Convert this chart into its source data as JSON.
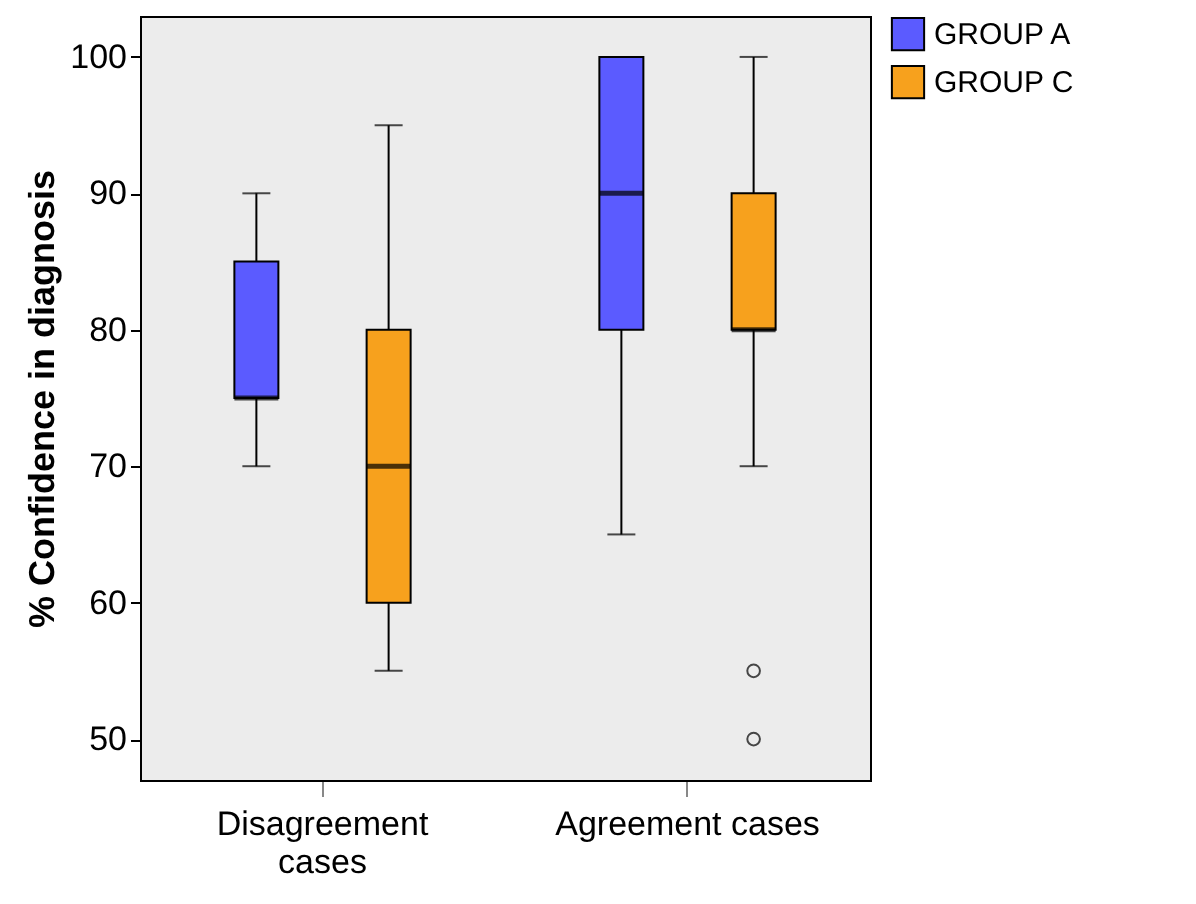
{
  "chart_data": {
    "type": "box",
    "ylabel": "% Confidence in diagnosis",
    "categories": [
      "Disagreement cases",
      "Agreement cases"
    ],
    "series": [
      {
        "name": "GROUP A",
        "color": "#5b5bff",
        "boxes": [
          {
            "low": 70,
            "q1": 75,
            "median": 75,
            "q3": 85,
            "high": 90
          },
          {
            "low": 65,
            "q1": 80,
            "median": 90,
            "q3": 100,
            "high": 100
          }
        ]
      },
      {
        "name": "GROUP C",
        "color": "#f7a11d",
        "boxes": [
          {
            "low": 55,
            "q1": 60,
            "median": 70,
            "q3": 80,
            "high": 95
          },
          {
            "low": 70,
            "q1": 80,
            "median": 80,
            "q3": 90,
            "high": 100,
            "outliers": [
              55,
              50
            ]
          }
        ]
      }
    ],
    "ylim": [
      47,
      103
    ],
    "yticks": [
      50,
      60,
      70,
      80,
      90,
      100
    ],
    "grid": false,
    "legend": "top right"
  }
}
